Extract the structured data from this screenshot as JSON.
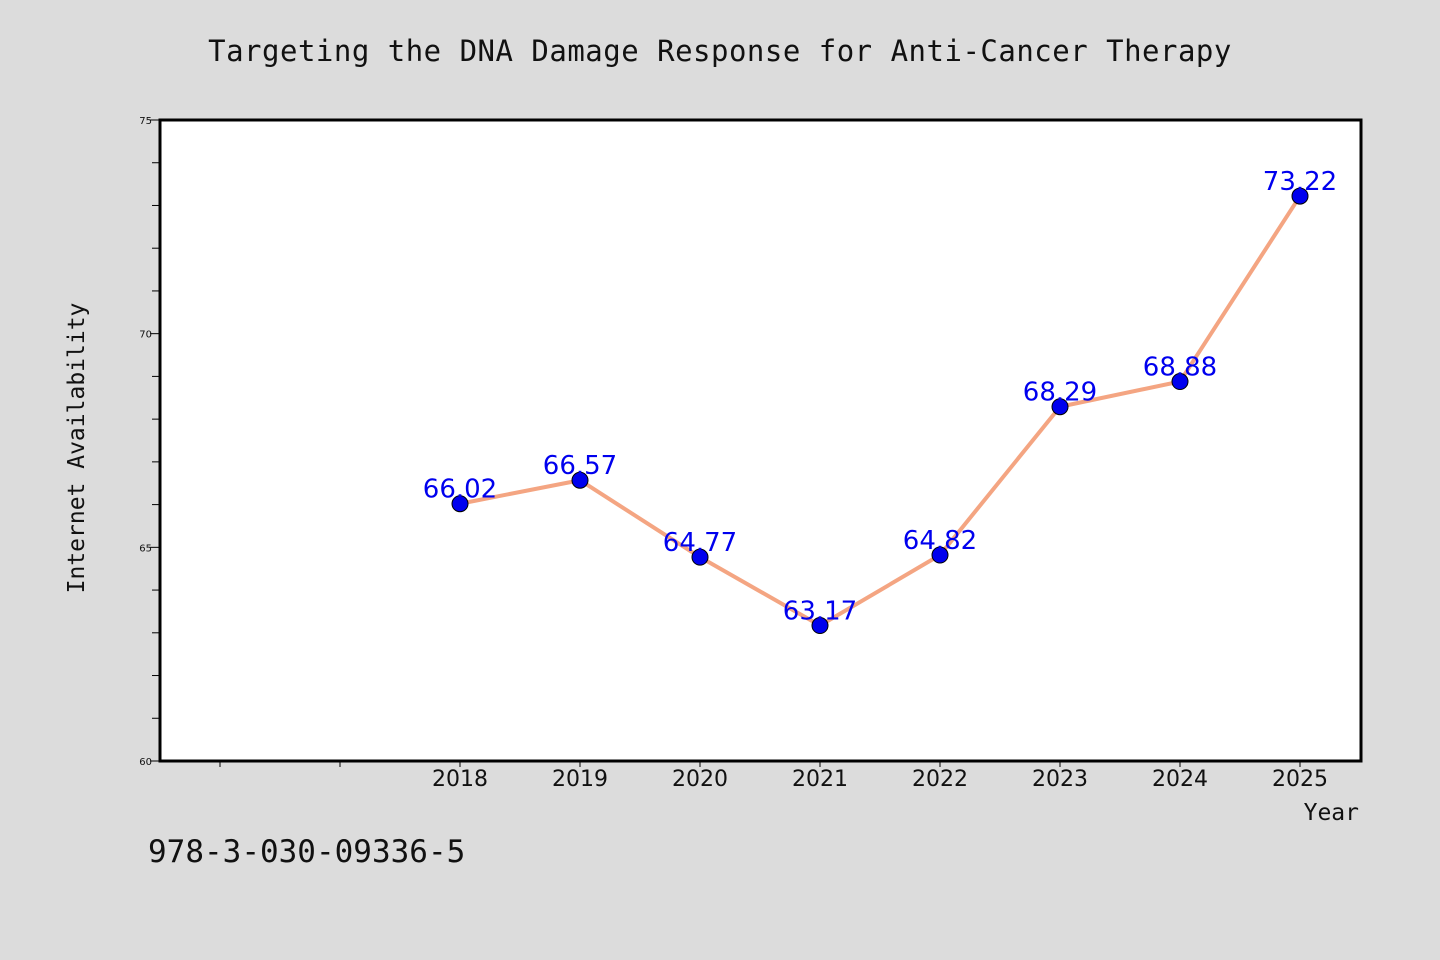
{
  "header": {
    "title": "Targeting the DNA Damage Response for Anti-Cancer Therapy"
  },
  "footer": {
    "isbn": "978-3-030-09336-5"
  },
  "chart_data": {
    "type": "line",
    "title": "Targeting the DNA Damage Response for Anti-Cancer Therapy",
    "xlabel": "Year",
    "ylabel": "Internet Availability",
    "ylim": [
      60,
      75
    ],
    "yticks": [
      60,
      65,
      70,
      75
    ],
    "x": [
      "2018",
      "2019",
      "2020",
      "2021",
      "2022",
      "2023",
      "2024",
      "2025"
    ],
    "series": [
      {
        "values": [
          66.02,
          66.57,
          64.77,
          63.17,
          64.82,
          68.29,
          68.88,
          73.22
        ],
        "labels": [
          "66.02",
          "66.57",
          "64.77",
          "63.17",
          "64.82",
          "68.29",
          "68.88",
          "73.22"
        ],
        "line_color": "#f4a582",
        "marker_color": "#0000ee"
      }
    ],
    "grid": false,
    "legend": "none",
    "background": "#dcdcdc",
    "plot_background": "#ffffff"
  }
}
